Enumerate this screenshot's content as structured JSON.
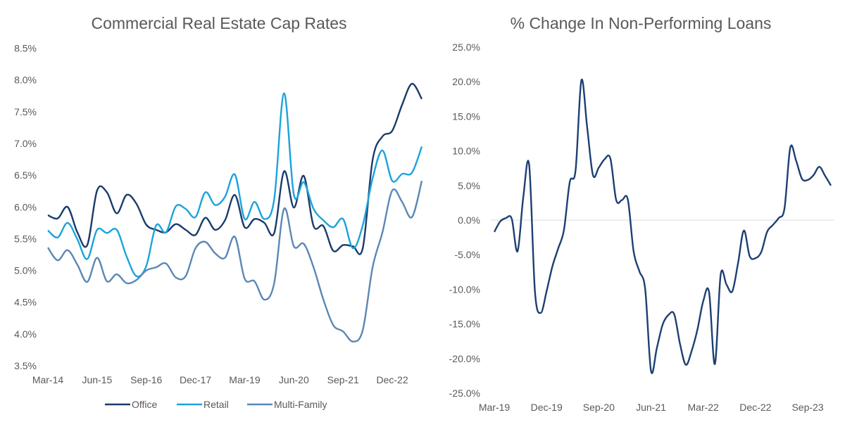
{
  "chart_data": [
    {
      "type": "line",
      "title": "Commercial Real Estate Cap Rates",
      "xlabel": "",
      "ylabel": "",
      "x_tick_labels": [
        "Mar-14",
        "Jun-15",
        "Sep-16",
        "Dec-17",
        "Mar-19",
        "Jun-20",
        "Sep-21",
        "Dec-22"
      ],
      "y_tick_labels": [
        "3.5%",
        "4.0%",
        "4.5%",
        "5.0%",
        "5.5%",
        "6.0%",
        "6.5%",
        "7.0%",
        "7.5%",
        "8.0%",
        "8.5%"
      ],
      "ylim": [
        3.5,
        8.5
      ],
      "x_start": "Mar-14",
      "x_end": "Sep-23",
      "x_frequency": "quarterly",
      "grid": false,
      "legend": "bottom",
      "series": [
        {
          "name": "Office",
          "color": "#1b3a6b",
          "values": [
            5.87,
            5.82,
            6.0,
            5.6,
            5.4,
            6.26,
            6.23,
            5.9,
            6.19,
            6.05,
            5.72,
            5.64,
            5.6,
            5.73,
            5.64,
            5.56,
            5.83,
            5.64,
            5.79,
            6.19,
            5.68,
            5.81,
            5.75,
            5.59,
            6.56,
            5.99,
            6.49,
            5.7,
            5.7,
            5.31,
            5.4,
            5.38,
            5.35,
            6.74,
            7.11,
            7.2,
            7.61,
            7.94,
            7.7
          ]
        },
        {
          "name": "Retail",
          "color": "#1ba3dc",
          "values": [
            5.63,
            5.52,
            5.75,
            5.49,
            5.18,
            5.64,
            5.59,
            5.64,
            5.22,
            4.91,
            5.07,
            5.71,
            5.6,
            6.01,
            5.97,
            5.84,
            6.23,
            6.03,
            6.16,
            6.51,
            5.81,
            6.08,
            5.81,
            6.12,
            7.79,
            6.19,
            6.39,
            5.97,
            5.79,
            5.68,
            5.81,
            5.35,
            5.71,
            6.45,
            6.89,
            6.41,
            6.52,
            6.54,
            6.95
          ]
        },
        {
          "name": "Multi-Family",
          "color": "#5b87b5",
          "values": [
            5.36,
            5.16,
            5.32,
            5.09,
            4.82,
            5.2,
            4.83,
            4.94,
            4.8,
            4.85,
            5.0,
            5.05,
            5.11,
            4.89,
            4.91,
            5.35,
            5.45,
            5.27,
            5.2,
            5.53,
            4.87,
            4.83,
            4.54,
            4.8,
            5.97,
            5.38,
            5.42,
            5.05,
            4.54,
            4.14,
            4.04,
            3.88,
            4.06,
            5.05,
            5.6,
            6.26,
            6.08,
            5.84,
            6.41
          ]
        }
      ]
    },
    {
      "type": "line",
      "title": "% Change In Non-Performing Loans",
      "xlabel": "",
      "ylabel": "",
      "x_tick_labels": [
        "Mar-19",
        "Dec-19",
        "Sep-20",
        "Jun-21",
        "Mar-22",
        "Dec-22",
        "Sep-23"
      ],
      "y_tick_labels": [
        "-25.0%",
        "-20.0%",
        "-15.0%",
        "-10.0%",
        "-5.0%",
        "0.0%",
        "5.0%",
        "10.0%",
        "15.0%",
        "20.0%",
        "25.0%"
      ],
      "ylim": [
        -25,
        25
      ],
      "x_start": "Mar-19",
      "x_end": "Jan-24",
      "x_frequency": "monthly",
      "grid": "zero line only",
      "legend": "none",
      "series": [
        {
          "color": "#1d3f73",
          "values": [
            -1.7,
            -0.2,
            0.3,
            0.2,
            -4.5,
            3.4,
            8.0,
            -10.3,
            -13.4,
            -10.3,
            -6.7,
            -4.1,
            -1.4,
            5.5,
            7.2,
            20.2,
            13.4,
            6.5,
            7.6,
            8.8,
            8.9,
            2.9,
            2.9,
            3.0,
            -4.5,
            -7.4,
            -10.0,
            -21.8,
            -18.5,
            -15.1,
            -13.7,
            -13.6,
            -17.9,
            -20.9,
            -18.9,
            -15.8,
            -11.7,
            -10.4,
            -20.8,
            -7.9,
            -9.3,
            -10.3,
            -6.2,
            -1.5,
            -5.2,
            -5.5,
            -4.6,
            -1.7,
            -0.7,
            0.3,
            1.7,
            10.5,
            8.6,
            6.0,
            5.8,
            6.5,
            7.7,
            6.4,
            5.0
          ]
        }
      ]
    }
  ]
}
